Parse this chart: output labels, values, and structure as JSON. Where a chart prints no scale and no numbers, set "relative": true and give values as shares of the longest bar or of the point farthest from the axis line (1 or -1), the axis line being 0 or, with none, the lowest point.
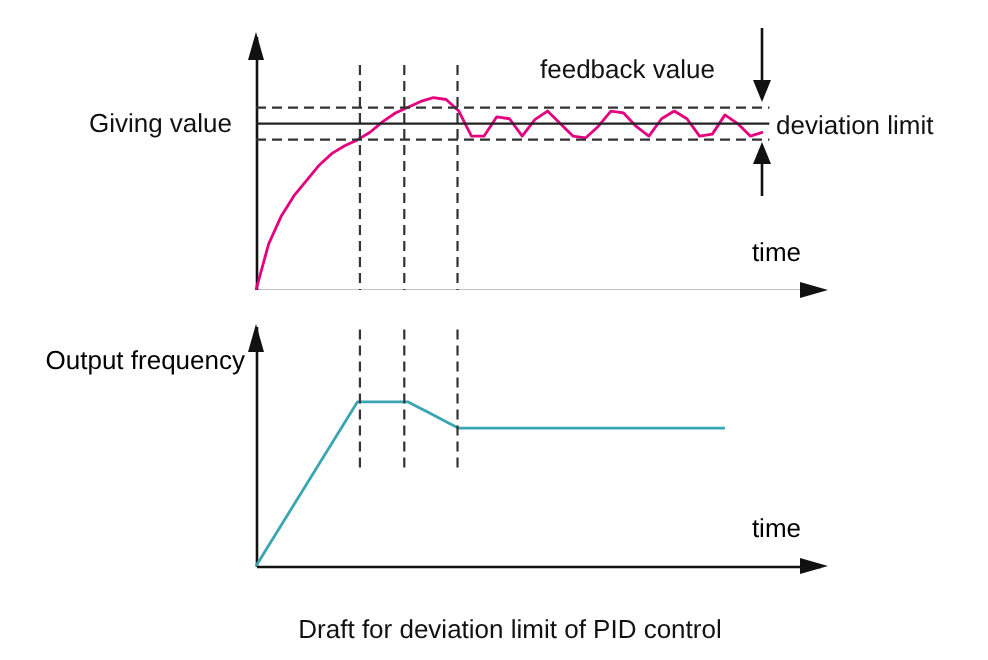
{
  "chart_data": [
    {
      "type": "line",
      "relative": true,
      "xlabel": "time",
      "categories": [
        null,
        null,
        null,
        null,
        null,
        null,
        null,
        null,
        null,
        null,
        null,
        null,
        null,
        null,
        null,
        null,
        null,
        null,
        null,
        null,
        null,
        null,
        null,
        null,
        null,
        null,
        null,
        null,
        null,
        null,
        null,
        null,
        null,
        null,
        null,
        null,
        null,
        null,
        null,
        null,
        null,
        null,
        null,
        null,
        null
      ],
      "color": "#e4007f",
      "values": [
        0,
        0.24,
        0.385,
        0.49,
        0.57,
        0.65,
        0.71,
        0.75,
        0.78,
        0.82,
        0.875,
        0.92,
        0.95,
        0.98,
        1,
        0.99,
        0.93,
        0.8,
        0.8,
        0.9,
        0.89,
        0.8,
        0.885,
        0.93,
        0.865,
        0.8,
        0.79,
        0.85,
        0.93,
        0.92,
        0.85,
        0.8,
        0.89,
        0.93,
        0.89,
        0.8,
        0.81,
        0.91,
        0.865,
        0.8,
        0.82,
        null,
        null,
        null,
        null
      ],
      "ref_lines": [
        {
          "axis": "y",
          "value": 0.865,
          "label": "Giving value",
          "color": "#222222",
          "line_style": "solid"
        },
        {
          "axis": "y",
          "value": 0.948,
          "label": null,
          "color": "#333333",
          "line_style": "dashed"
        },
        {
          "axis": "y",
          "value": 0.781,
          "label": null,
          "color": "#333333",
          "line_style": "dashed"
        }
      ],
      "annotations": [
        "feedback value",
        "deviation limit"
      ]
    },
    {
      "type": "line",
      "relative": true,
      "xlabel": "time",
      "ylabel": "Output frequency",
      "categories": [
        null,
        null,
        null,
        null,
        null,
        null,
        null,
        null,
        null,
        null,
        null,
        null,
        null,
        null,
        null,
        null,
        null,
        null,
        null,
        null,
        null,
        null,
        null,
        null,
        null,
        null,
        null,
        null,
        null,
        null,
        null,
        null,
        null,
        null,
        null,
        null,
        null,
        null,
        null,
        null,
        null,
        null,
        null,
        null,
        null
      ],
      "color": "#3aa6b3",
      "values": [
        0,
        0.125,
        0.25,
        0.375,
        0.5,
        0.625,
        0.75,
        0.875,
        1,
        1,
        1,
        1,
        1,
        0.96,
        0.92,
        0.88,
        0.84,
        0.84,
        0.84,
        0.84,
        0.84,
        0.84,
        0.84,
        0.84,
        0.84,
        0.84,
        0.84,
        0.84,
        0.84,
        0.84,
        0.84,
        0.84,
        0.84,
        0.84,
        0.84,
        0.84,
        0.84,
        0.84,
        null,
        null,
        null,
        null,
        null,
        null,
        null
      ],
      "annotations": [
        "Draft for deviation limit of PID control"
      ]
    }
  ]
}
